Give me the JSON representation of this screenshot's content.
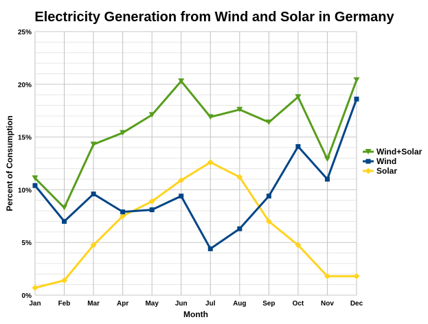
{
  "chart_data": {
    "type": "line",
    "title": "Electricity Generation from Wind and Solar in Germany",
    "xlabel": "Month",
    "ylabel": "Percent of Consumption",
    "categories": [
      "Jan",
      "Feb",
      "Mar",
      "Apr",
      "May",
      "Jun",
      "Jul",
      "Aug",
      "Sep",
      "Oct",
      "Nov",
      "Dec"
    ],
    "ylim": [
      0,
      25
    ],
    "yticks": [
      "0%",
      "5%",
      "10%",
      "15%",
      "20%",
      "25%"
    ],
    "grid": true,
    "legend_position": "right",
    "series": [
      {
        "name": "Wind+Solar",
        "color": "#579d1c",
        "marker": "triangle-down",
        "values": [
          11.1,
          8.3,
          14.3,
          15.4,
          17.1,
          20.3,
          16.9,
          17.6,
          16.4,
          18.8,
          12.9,
          20.4
        ]
      },
      {
        "name": "Wind",
        "color": "#004586",
        "marker": "square",
        "values": [
          10.4,
          7.0,
          9.6,
          7.9,
          8.1,
          9.4,
          4.4,
          6.3,
          9.4,
          14.1,
          11.0,
          18.6
        ]
      },
      {
        "name": "Solar",
        "color": "#ffd320",
        "marker": "diamond",
        "values": [
          0.7,
          1.4,
          4.75,
          7.5,
          8.9,
          10.9,
          12.6,
          11.2,
          7.0,
          4.75,
          1.8,
          1.8
        ]
      }
    ]
  }
}
